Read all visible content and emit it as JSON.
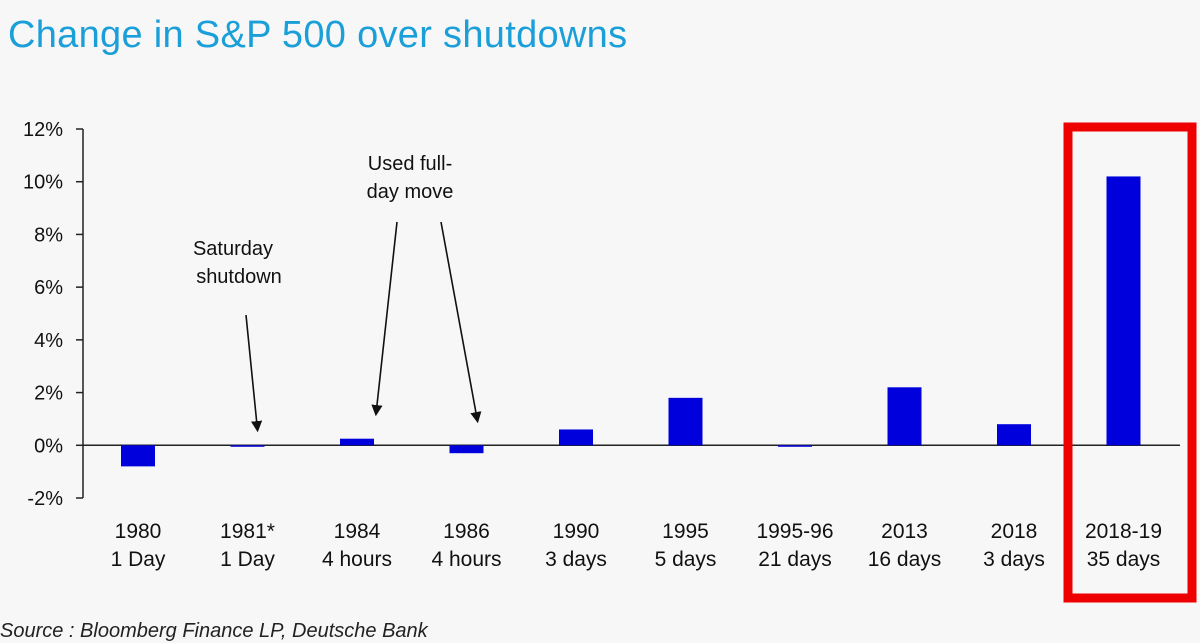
{
  "title": "Change in S&P 500 over shutdowns",
  "source": "Source : Bloomberg Finance LP, Deutsche Bank",
  "chart_data": {
    "type": "bar",
    "title": "Change in S&P 500 over shutdowns",
    "xlabel": "",
    "ylabel": "",
    "ylim": [
      -2,
      12
    ],
    "yticks": [
      "-2%",
      "0%",
      "2%",
      "4%",
      "6%",
      "8%",
      "10%",
      "12%"
    ],
    "ytick_values": [
      -2,
      0,
      2,
      4,
      6,
      8,
      10,
      12
    ],
    "categories": [
      {
        "year": "1980",
        "duration": "1 Day"
      },
      {
        "year": "1981*",
        "duration": "1 Day"
      },
      {
        "year": "1984",
        "duration": "4 hours"
      },
      {
        "year": "1986",
        "duration": "4 hours"
      },
      {
        "year": "1990",
        "duration": "3 days"
      },
      {
        "year": "1995",
        "duration": "5 days"
      },
      {
        "year": "1995-96",
        "duration": "21 days"
      },
      {
        "year": "2013",
        "duration": "16 days"
      },
      {
        "year": "2018",
        "duration": "3 days"
      },
      {
        "year": "2018-19",
        "duration": "35 days"
      }
    ],
    "values": [
      -0.8,
      0,
      0.25,
      -0.3,
      0.6,
      1.8,
      -0.05,
      2.2,
      0.8,
      10.2
    ],
    "bar_color": "#0000dd",
    "highlight_color": "#ee0000",
    "highlight_category_index": 9,
    "annotations": [
      {
        "lines": [
          "Saturday",
          "shutdown"
        ],
        "targets": [
          1
        ]
      },
      {
        "lines": [
          "Used full-",
          "day move"
        ],
        "targets": [
          2,
          3
        ]
      }
    ]
  }
}
